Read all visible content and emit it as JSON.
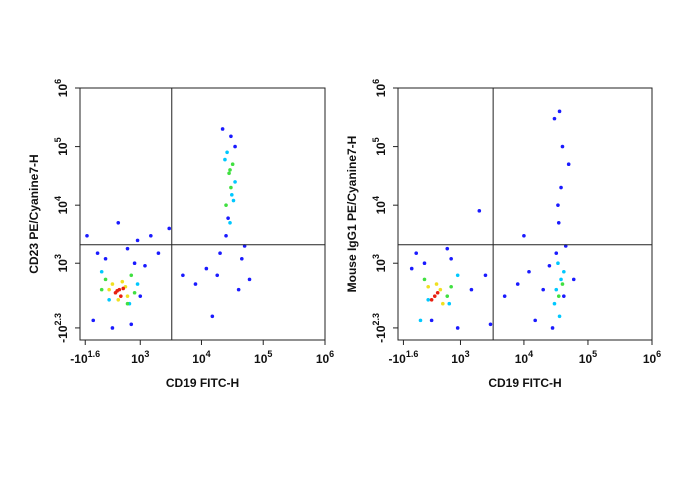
{
  "chart_data": [
    {
      "type": "scatter",
      "x_label": "CD19 FITC-H",
      "y_label": "CD23 PE/Cyanine7-H",
      "xlim": [
        -100,
        1000000
      ],
      "ylim": [
        -400,
        1000000
      ],
      "xticks": [
        {
          "value": -39.8,
          "label": "-10",
          "sup": "1.6"
        },
        {
          "value": 1000,
          "label": "10",
          "sup": "3"
        },
        {
          "value": 10000,
          "label": "10",
          "sup": "4"
        },
        {
          "value": 100000,
          "label": "10",
          "sup": "5"
        },
        {
          "value": 1000000,
          "label": "10",
          "sup": "6"
        }
      ],
      "yticks": [
        {
          "value": -199.5,
          "label": "-10",
          "sup": "2.3"
        },
        {
          "value": 1000,
          "label": "10",
          "sup": "3"
        },
        {
          "value": 10000,
          "label": "10",
          "sup": "4"
        },
        {
          "value": 100000,
          "label": "10",
          "sup": "5"
        },
        {
          "value": 1000000,
          "label": "10",
          "sup": "6"
        }
      ],
      "gate_x": 3300,
      "gate_y": 2100,
      "series": [
        {
          "color": "#1a1aff",
          "x": [
            50,
            1200,
            2000,
            900,
            1500,
            5000,
            8000,
            12000,
            20000,
            40000,
            60000,
            30000,
            22000,
            45000,
            15000,
            100,
            -20,
            3000,
            700,
            400,
            25000,
            35000,
            18000,
            50000,
            200,
            600,
            1000,
            300,
            800,
            27000
          ],
          "y": [
            -100,
            900,
            1500,
            2500,
            3000,
            600,
            400,
            800,
            1500,
            300,
            500,
            150000,
            200000,
            1200,
            -50,
            1500,
            3000,
            4000,
            -150,
            5000,
            3000,
            100000,
            600,
            2000,
            1200,
            1800,
            200,
            -200,
            1000,
            6000
          ]
        },
        {
          "color": "#00c8ff",
          "x": [
            26000,
            31000,
            29000,
            35000,
            150,
            900,
            24000,
            33000,
            650,
            250
          ],
          "y": [
            80000,
            15000,
            5000,
            25000,
            700,
            400,
            60000,
            12000,
            100,
            150
          ]
        },
        {
          "color": "#40e040",
          "x": [
            200,
            700,
            800,
            150,
            600,
            30000,
            28000,
            32000,
            25000,
            29000
          ],
          "y": [
            500,
            600,
            250,
            300,
            100,
            20000,
            35000,
            50000,
            10000,
            40000
          ]
        },
        {
          "color": "#f0e020",
          "x": [
            300,
            550,
            600,
            400,
            250,
            480
          ],
          "y": [
            400,
            350,
            200,
            150,
            300,
            450
          ]
        },
        {
          "color": "#e82010",
          "x": [
            350,
            420,
            500,
            450,
            380
          ],
          "y": [
            250,
            300,
            320,
            200,
            280
          ]
        }
      ]
    },
    {
      "type": "scatter",
      "x_label": "CD19 FITC-H",
      "y_label": "Mouse IgG1 PE/Cyanine7-H",
      "xlim": [
        -100,
        1000000
      ],
      "ylim": [
        -400,
        1000000
      ],
      "xticks": [
        {
          "value": -39.8,
          "label": "-10",
          "sup": "1.6"
        },
        {
          "value": 1000,
          "label": "10",
          "sup": "3"
        },
        {
          "value": 10000,
          "label": "10",
          "sup": "4"
        },
        {
          "value": 100000,
          "label": "10",
          "sup": "5"
        },
        {
          "value": 1000000,
          "label": "10",
          "sup": "6"
        }
      ],
      "yticks": [
        {
          "value": -199.5,
          "label": "-10",
          "sup": "2.3"
        },
        {
          "value": 1000,
          "label": "10",
          "sup": "3"
        },
        {
          "value": 10000,
          "label": "10",
          "sup": "4"
        },
        {
          "value": 100000,
          "label": "10",
          "sup": "5"
        },
        {
          "value": 1000000,
          "label": "10",
          "sup": "6"
        }
      ],
      "gate_x": 3300,
      "gate_y": 2100,
      "series": [
        {
          "color": "#1a1aff",
          "x": [
            50,
            1500,
            2500,
            5000,
            8000,
            12000,
            20000,
            60000,
            45000,
            35000,
            38000,
            40000,
            30000,
            15000,
            100,
            700,
            3000,
            25000,
            50000,
            36000,
            34000,
            2000,
            42000,
            10000,
            200,
            900,
            300,
            28000,
            32000,
            600
          ],
          "y": [
            800,
            300,
            600,
            200,
            400,
            700,
            300,
            500,
            2000,
            5000,
            20000,
            100000,
            300000,
            -100,
            1500,
            1200,
            -150,
            900,
            50000,
            400000,
            10000,
            8000,
            200,
            3000,
            1000,
            -200,
            -100,
            -200,
            1500,
            1800
          ]
        },
        {
          "color": "#00c8ff",
          "x": [
            32000,
            38000,
            30000,
            42000,
            36000,
            150,
            900,
            650,
            250,
            34000
          ],
          "y": [
            300,
            500,
            100,
            700,
            -50,
            -100,
            600,
            100,
            150,
            1000
          ]
        },
        {
          "color": "#40e040",
          "x": [
            200,
            600,
            700,
            35000,
            40000
          ],
          "y": [
            500,
            200,
            350,
            200,
            400
          ]
        },
        {
          "color": "#f0e020",
          "x": [
            450,
            250,
            500,
            380
          ],
          "y": [
            300,
            350,
            100,
            400
          ]
        },
        {
          "color": "#e82010",
          "x": [
            350,
            400,
            300
          ],
          "y": [
            200,
            250,
            150
          ]
        }
      ]
    }
  ]
}
